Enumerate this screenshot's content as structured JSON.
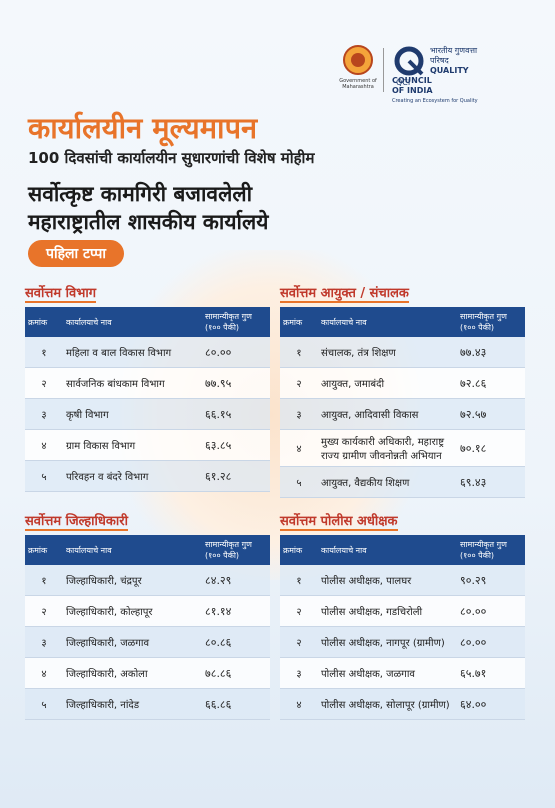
{
  "logos": {
    "gov": "Government of Maharashtra",
    "qci_hindi": "भारतीय गुणवत्ता परिषद",
    "qci_name1": "QUALITY COUNCIL",
    "qci_name2": "OF INDIA",
    "qci_tagline": "Creating an Ecosystem for Quality",
    "qci_short": "QCI"
  },
  "header": {
    "title": "कार्यालयीन मूल्यमापन",
    "subtitle": "100 दिवसांची कार्यालयीन सुधारणांची विशेष मोहीम",
    "heading1": "सर्वोत्कृष्ट कामगिरी बजावलेली",
    "heading2": "महाराष्ट्रातील शासकीय कार्यालये",
    "phase": "पहिला टप्पा"
  },
  "tables": [
    {
      "title": "सर्वोत्तम विभाग",
      "columns": [
        "क्रमांक",
        "कार्यालयाचे नाव",
        "सामान्यीकृत गुण",
        "(१०० पैकी)"
      ],
      "rows": [
        [
          "१",
          "महिला व बाल विकास विभाग",
          "८०.००"
        ],
        [
          "२",
          "सार्वजनिक बांधकाम विभाग",
          "७७.९५"
        ],
        [
          "३",
          "कृषी विभाग",
          "६६.१५"
        ],
        [
          "४",
          "ग्राम विकास विभाग",
          "६३.८५"
        ],
        [
          "५",
          "परिवहन व बंदरे विभाग",
          "६१.२८"
        ]
      ]
    },
    {
      "title": "सर्वोत्तम आयुक्त / संचालक",
      "columns": [
        "क्रमांक",
        "कार्यालयाचे नाव",
        "सामान्यीकृत गुण",
        "(१०० पैकी)"
      ],
      "rows": [
        [
          "१",
          "संचालक, तंत्र शिक्षण",
          "७७.४३"
        ],
        [
          "२",
          "आयुक्त, जमाबंदी",
          "७२.८६"
        ],
        [
          "३",
          "आयुक्त, आदिवासी विकास",
          "७२.५७"
        ],
        [
          "४",
          "मुख्य कार्यकारी अधिकारी, महाराष्ट्र राज्य ग्रामीण जीवनोन्नती अभियान",
          "७०.१८"
        ],
        [
          "५",
          "आयुक्त, वैद्यकीय शिक्षण",
          "६९.४३"
        ]
      ]
    },
    {
      "title": "सर्वोत्तम जिल्हाधिकारी",
      "columns": [
        "क्रमांक",
        "कार्यालयाचे नाव",
        "सामान्यीकृत गुण",
        "(१०० पैकी)"
      ],
      "rows": [
        [
          "१",
          "जिल्हाधिकारी, चंद्रपूर",
          "८४.२९"
        ],
        [
          "२",
          "जिल्हाधिकारी, कोल्हापूर",
          "८१.१४"
        ],
        [
          "३",
          "जिल्हाधिकारी, जळगाव",
          "८०.८६"
        ],
        [
          "४",
          "जिल्हाधिकारी, अकोला",
          "७८.८६"
        ],
        [
          "५",
          "जिल्हाधिकारी, नांदेड",
          "६६.८६"
        ]
      ]
    },
    {
      "title": "सर्वोत्तम पोलीस अधीक्षक",
      "columns": [
        "क्रमांक",
        "कार्यालयाचे नाव",
        "सामान्यीकृत गुण",
        "(१०० पैकी)"
      ],
      "rows": [
        [
          "१",
          "पोलीस अधीक्षक, पालघर",
          "९०.२९"
        ],
        [
          "२",
          "पोलीस अधीक्षक, गडचिरोली",
          "८०.००"
        ],
        [
          "२",
          "पोलीस अधीक्षक, नागपूर (ग्रामीण)",
          "८०.००"
        ],
        [
          "३",
          "पोलीस अधीक्षक, जळगाव",
          "६५.७१"
        ],
        [
          "४",
          "पोलीस अधीक्षक, सोलापूर (ग्रामीण)",
          "६४.००"
        ]
      ]
    }
  ]
}
